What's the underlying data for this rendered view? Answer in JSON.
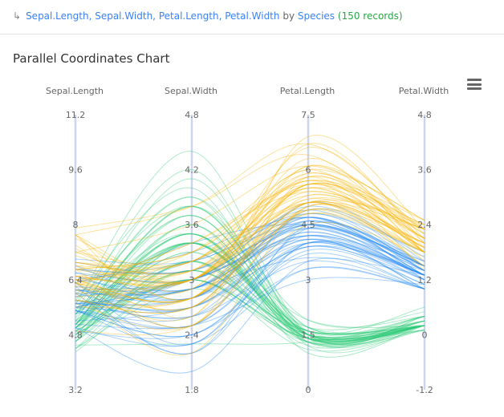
{
  "header": {
    "fields": "Sepal.Length, Sepal.Width, Petal.Length, Petal.Width",
    "by": "by",
    "group": "Species",
    "count": "(150 records)"
  },
  "menu_icon": "hamburger-menu-icon",
  "chart_data": {
    "type": "parallel-coordinates",
    "title": "Parallel Coordinates Chart",
    "axes": [
      {
        "name": "Sepal.Length",
        "range": [
          3.2,
          11.2
        ],
        "ticks": [
          "3.2",
          "4.8",
          "6.4",
          "8",
          "9.6",
          "11.2"
        ]
      },
      {
        "name": "Sepal.Width",
        "range": [
          1.8,
          4.8
        ],
        "ticks": [
          "1.8",
          "2.4",
          "3",
          "3.6",
          "4.2",
          "4.8"
        ]
      },
      {
        "name": "Petal.Length",
        "range": [
          0,
          7.5
        ],
        "ticks": [
          "0",
          "1.5",
          "3",
          "4.5",
          "6",
          "7.5"
        ]
      },
      {
        "name": "Petal.Width",
        "range": [
          -1.2,
          4.8
        ],
        "ticks": [
          "-1.2",
          "0",
          "1.2",
          "2.4",
          "3.6",
          "4.8"
        ]
      }
    ],
    "series": [
      {
        "color": "#2ccb75",
        "values": [
          [
            5.1,
            3.5,
            1.4,
            0.2
          ],
          [
            4.9,
            3.0,
            1.4,
            0.2
          ],
          [
            4.7,
            3.2,
            1.3,
            0.2
          ],
          [
            4.6,
            3.1,
            1.5,
            0.2
          ],
          [
            5.0,
            3.6,
            1.4,
            0.2
          ],
          [
            5.4,
            3.9,
            1.7,
            0.4
          ],
          [
            4.6,
            3.4,
            1.4,
            0.3
          ],
          [
            5.0,
            3.4,
            1.5,
            0.2
          ],
          [
            4.4,
            2.9,
            1.4,
            0.2
          ],
          [
            4.9,
            3.1,
            1.5,
            0.1
          ],
          [
            5.4,
            3.7,
            1.5,
            0.2
          ],
          [
            4.8,
            3.4,
            1.6,
            0.2
          ],
          [
            4.8,
            3.0,
            1.4,
            0.1
          ],
          [
            4.3,
            3.0,
            1.1,
            0.1
          ],
          [
            5.8,
            4.0,
            1.2,
            0.2
          ],
          [
            5.7,
            4.4,
            1.5,
            0.4
          ],
          [
            5.4,
            3.9,
            1.3,
            0.4
          ],
          [
            5.1,
            3.5,
            1.4,
            0.3
          ],
          [
            5.7,
            3.8,
            1.7,
            0.3
          ],
          [
            5.1,
            3.8,
            1.5,
            0.3
          ],
          [
            5.4,
            3.4,
            1.7,
            0.2
          ],
          [
            5.1,
            3.7,
            1.5,
            0.4
          ],
          [
            4.6,
            3.6,
            1.0,
            0.2
          ],
          [
            5.1,
            3.3,
            1.7,
            0.5
          ],
          [
            4.8,
            3.4,
            1.9,
            0.2
          ],
          [
            5.0,
            3.0,
            1.6,
            0.2
          ],
          [
            5.0,
            3.4,
            1.6,
            0.4
          ],
          [
            5.2,
            3.5,
            1.5,
            0.2
          ],
          [
            5.2,
            3.4,
            1.4,
            0.2
          ],
          [
            4.7,
            3.2,
            1.6,
            0.2
          ],
          [
            4.8,
            3.1,
            1.6,
            0.2
          ],
          [
            5.4,
            3.4,
            1.5,
            0.4
          ],
          [
            5.2,
            4.1,
            1.5,
            0.1
          ],
          [
            5.5,
            4.2,
            1.4,
            0.2
          ],
          [
            4.9,
            3.1,
            1.5,
            0.2
          ],
          [
            5.0,
            3.2,
            1.2,
            0.2
          ],
          [
            5.5,
            3.5,
            1.3,
            0.2
          ],
          [
            4.9,
            3.6,
            1.4,
            0.1
          ],
          [
            4.4,
            3.0,
            1.3,
            0.2
          ],
          [
            5.1,
            3.4,
            1.5,
            0.2
          ],
          [
            5.0,
            3.5,
            1.3,
            0.3
          ],
          [
            4.5,
            2.3,
            1.3,
            0.3
          ],
          [
            4.4,
            3.2,
            1.3,
            0.2
          ],
          [
            5.0,
            3.5,
            1.6,
            0.6
          ],
          [
            5.1,
            3.8,
            1.9,
            0.4
          ],
          [
            4.8,
            3.0,
            1.4,
            0.3
          ],
          [
            5.1,
            3.8,
            1.6,
            0.2
          ],
          [
            4.6,
            3.2,
            1.4,
            0.2
          ],
          [
            5.3,
            3.7,
            1.5,
            0.2
          ],
          [
            5.0,
            3.3,
            1.4,
            0.2
          ]
        ]
      },
      {
        "color": "#1c87f5",
        "values": [
          [
            7.0,
            3.2,
            4.7,
            1.4
          ],
          [
            6.4,
            3.2,
            4.5,
            1.5
          ],
          [
            6.9,
            3.1,
            4.9,
            1.5
          ],
          [
            5.5,
            2.3,
            4.0,
            1.3
          ],
          [
            6.5,
            2.8,
            4.6,
            1.5
          ],
          [
            5.7,
            2.8,
            4.5,
            1.3
          ],
          [
            6.3,
            3.3,
            4.7,
            1.6
          ],
          [
            4.9,
            2.4,
            3.3,
            1.0
          ],
          [
            6.6,
            2.9,
            4.6,
            1.3
          ],
          [
            5.2,
            2.7,
            3.9,
            1.4
          ],
          [
            5.0,
            2.0,
            3.5,
            1.0
          ],
          [
            5.9,
            3.0,
            4.2,
            1.5
          ],
          [
            6.0,
            2.2,
            4.0,
            1.0
          ],
          [
            6.1,
            2.9,
            4.7,
            1.4
          ],
          [
            5.6,
            2.9,
            3.6,
            1.3
          ],
          [
            6.7,
            3.1,
            4.4,
            1.4
          ],
          [
            5.6,
            3.0,
            4.5,
            1.5
          ],
          [
            5.8,
            2.7,
            4.1,
            1.0
          ],
          [
            6.2,
            2.2,
            4.5,
            1.5
          ],
          [
            5.6,
            2.5,
            3.9,
            1.1
          ],
          [
            5.9,
            3.2,
            4.8,
            1.8
          ],
          [
            6.1,
            2.8,
            4.0,
            1.3
          ],
          [
            6.3,
            2.5,
            4.9,
            1.5
          ],
          [
            6.1,
            2.8,
            4.7,
            1.2
          ],
          [
            6.4,
            2.9,
            4.3,
            1.3
          ],
          [
            6.6,
            3.0,
            4.4,
            1.4
          ],
          [
            6.8,
            2.8,
            4.8,
            1.4
          ],
          [
            6.7,
            3.0,
            5.0,
            1.7
          ],
          [
            6.0,
            2.9,
            4.5,
            1.5
          ],
          [
            5.7,
            2.6,
            3.5,
            1.0
          ],
          [
            5.5,
            2.4,
            3.8,
            1.1
          ],
          [
            5.5,
            2.4,
            3.7,
            1.0
          ],
          [
            5.8,
            2.7,
            3.9,
            1.2
          ],
          [
            6.0,
            2.7,
            5.1,
            1.6
          ],
          [
            5.4,
            3.0,
            4.5,
            1.5
          ],
          [
            6.0,
            3.4,
            4.5,
            1.6
          ],
          [
            6.7,
            3.1,
            4.7,
            1.5
          ],
          [
            6.3,
            2.3,
            4.4,
            1.3
          ],
          [
            5.6,
            3.0,
            4.1,
            1.3
          ],
          [
            5.5,
            2.5,
            4.0,
            1.3
          ],
          [
            5.5,
            2.6,
            4.4,
            1.2
          ],
          [
            6.1,
            3.0,
            4.6,
            1.4
          ],
          [
            5.8,
            2.6,
            4.0,
            1.2
          ],
          [
            5.0,
            2.3,
            3.3,
            1.0
          ],
          [
            5.6,
            2.7,
            4.2,
            1.3
          ],
          [
            5.7,
            3.0,
            4.2,
            1.2
          ],
          [
            5.7,
            2.9,
            4.2,
            1.3
          ],
          [
            6.2,
            2.9,
            4.3,
            1.3
          ],
          [
            5.1,
            2.5,
            3.0,
            1.1
          ],
          [
            5.7,
            2.8,
            4.1,
            1.3
          ]
        ]
      },
      {
        "color": "#f7b400",
        "values": [
          [
            6.3,
            3.3,
            6.0,
            2.5
          ],
          [
            5.8,
            2.7,
            5.1,
            1.9
          ],
          [
            7.1,
            3.0,
            5.9,
            2.1
          ],
          [
            6.3,
            2.9,
            5.6,
            1.8
          ],
          [
            6.5,
            3.0,
            5.8,
            2.2
          ],
          [
            7.6,
            3.0,
            6.6,
            2.1
          ],
          [
            4.9,
            2.5,
            4.5,
            1.7
          ],
          [
            7.3,
            2.9,
            6.3,
            1.8
          ],
          [
            6.7,
            2.5,
            5.8,
            1.8
          ],
          [
            7.2,
            3.6,
            6.1,
            2.5
          ],
          [
            6.5,
            3.2,
            5.1,
            2.0
          ],
          [
            6.4,
            2.7,
            5.3,
            1.9
          ],
          [
            6.8,
            3.0,
            5.5,
            2.1
          ],
          [
            5.7,
            2.5,
            5.0,
            2.0
          ],
          [
            5.8,
            2.8,
            5.1,
            2.4
          ],
          [
            6.4,
            3.2,
            5.3,
            2.3
          ],
          [
            6.5,
            3.0,
            5.5,
            1.8
          ],
          [
            7.7,
            3.8,
            6.7,
            2.2
          ],
          [
            7.7,
            2.6,
            6.9,
            2.3
          ],
          [
            6.0,
            2.2,
            5.0,
            1.5
          ],
          [
            6.9,
            3.2,
            5.7,
            2.3
          ],
          [
            5.6,
            2.8,
            4.9,
            2.0
          ],
          [
            7.7,
            2.8,
            6.7,
            2.0
          ],
          [
            6.3,
            2.7,
            4.9,
            1.8
          ],
          [
            6.7,
            3.3,
            5.7,
            2.1
          ],
          [
            7.2,
            3.2,
            6.0,
            1.8
          ],
          [
            6.2,
            2.8,
            4.8,
            1.8
          ],
          [
            6.1,
            3.0,
            4.9,
            1.8
          ],
          [
            6.4,
            2.8,
            5.6,
            2.1
          ],
          [
            7.2,
            3.0,
            5.8,
            1.6
          ],
          [
            7.4,
            2.8,
            6.1,
            1.9
          ],
          [
            7.9,
            3.8,
            6.4,
            2.0
          ],
          [
            6.4,
            2.8,
            5.6,
            2.2
          ],
          [
            6.3,
            2.8,
            5.1,
            1.5
          ],
          [
            6.1,
            2.6,
            5.6,
            1.4
          ],
          [
            7.7,
            3.0,
            6.1,
            2.3
          ],
          [
            6.3,
            3.4,
            5.6,
            2.4
          ],
          [
            6.4,
            3.1,
            5.5,
            1.8
          ],
          [
            6.0,
            3.0,
            4.8,
            1.8
          ],
          [
            6.9,
            3.1,
            5.4,
            2.1
          ],
          [
            6.7,
            3.1,
            5.6,
            2.4
          ],
          [
            6.9,
            3.1,
            5.1,
            2.3
          ],
          [
            5.8,
            2.7,
            5.1,
            1.9
          ],
          [
            6.8,
            3.2,
            5.9,
            2.3
          ],
          [
            6.7,
            3.3,
            5.7,
            2.5
          ],
          [
            6.7,
            3.0,
            5.2,
            2.3
          ],
          [
            6.3,
            2.5,
            5.0,
            1.9
          ],
          [
            6.5,
            3.0,
            5.2,
            2.0
          ],
          [
            6.2,
            3.4,
            5.4,
            2.3
          ],
          [
            5.9,
            3.0,
            5.1,
            1.8
          ]
        ]
      }
    ]
  }
}
